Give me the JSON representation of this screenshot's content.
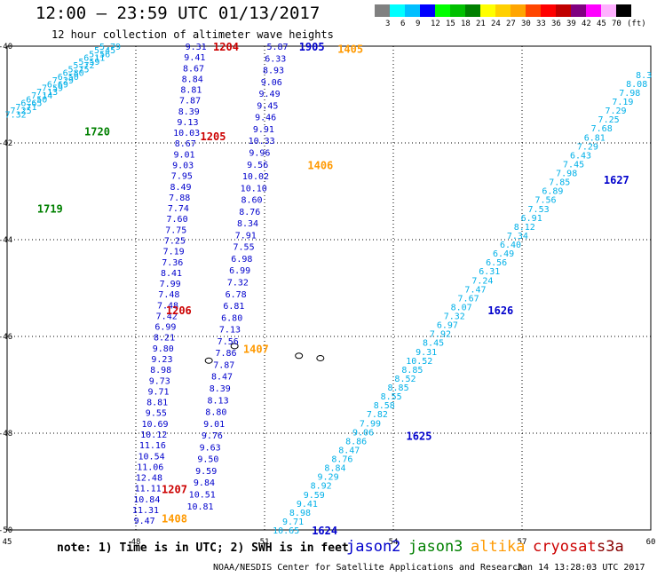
{
  "title": "12:00 – 23:59 UTC 01/13/2017",
  "subtitle": "12 hour collection of altimeter wave heights",
  "colorbar": {
    "unit": "(ft)",
    "labels": [
      "3",
      "6",
      "9",
      "12",
      "15",
      "18",
      "21",
      "24",
      "27",
      "30",
      "33",
      "36",
      "39",
      "42",
      "45",
      "70"
    ],
    "colors": [
      "#808080",
      "#00ffff",
      "#00bfff",
      "#0000ff",
      "#00ff00",
      "#00c000",
      "#008000",
      "#ffff00",
      "#ffd000",
      "#ffa500",
      "#ff4500",
      "#ff0000",
      "#c00000",
      "#800080",
      "#ff00ff",
      "#ffb0ff",
      "#000000"
    ]
  },
  "note": "note: 1) Time is in UTC; 2) SWH is in feet",
  "legend": [
    {
      "name": "jason2",
      "color": "#0000cc"
    },
    {
      "name": "jason3",
      "color": "#008000"
    },
    {
      "name": "altika",
      "color": "#ff9900"
    },
    {
      "name": "cryosat",
      "color": "#cc0000"
    },
    {
      "name": "s3a",
      "color": "#880000"
    }
  ],
  "footer_left": "NOAA/NESDIS Center for Satellite Applications and Research",
  "footer_right": "Jan 14 13:28:03 UTC 2017",
  "chart_data": {
    "type": "scatter",
    "xlim": [
      45,
      60
    ],
    "ylim": [
      -50,
      -40
    ],
    "x_ticks": [
      "45",
      "48",
      "51",
      "54",
      "57",
      "60"
    ],
    "y_ticks": [
      "-40",
      "-42",
      "-44",
      "-46",
      "-48",
      "-50"
    ],
    "grid": true,
    "colors": {
      "cyan": "#00b0e8",
      "blue": "#0000cc",
      "green": "#008000",
      "red": "#cc0000",
      "orange": "#ff9900"
    },
    "tracks": [
      {
        "lon0": 45.2,
        "lat0": -41.4,
        "lon1": 47.4,
        "lat1": -40.0,
        "color": "cyan",
        "values": [
          "7.32",
          "7.25",
          "7.71",
          "6.65",
          "6.50",
          "7.14",
          "7.13",
          "7.59",
          "6.69",
          "7.29",
          "6.50",
          "6.80",
          "5.75",
          "5.72",
          "5.59",
          "6.11",
          "5.56",
          "5.45",
          "5.79"
        ]
      },
      {
        "lon0": 48.2,
        "lat0": -49.8,
        "lon1": 49.4,
        "lat1": -40.0,
        "color": "blue",
        "values": [
          "9.47",
          "11.31",
          "10.84",
          "11.11",
          "12.48",
          "11.06",
          "10.54",
          "11.16",
          "10.12",
          "10.69",
          "9.55",
          "8.81",
          "9.71",
          "9.73",
          "8.98",
          "9.23",
          "9.80",
          "8.21",
          "6.99",
          "7.42",
          "7.48",
          "7.48",
          "7.99",
          "8.41",
          "7.36",
          "7.19",
          "7.25",
          "7.75",
          "7.60",
          "7.74",
          "7.88",
          "8.49",
          "7.95",
          "9.03",
          "9.01",
          "8.67",
          "10.03",
          "9.13",
          "8.39",
          "7.87",
          "8.81",
          "8.84",
          "8.67",
          "9.41",
          "9.31"
        ]
      },
      {
        "lon0": 49.5,
        "lat0": -49.5,
        "lon1": 51.3,
        "lat1": -40.0,
        "color": "blue",
        "values": [
          "10.81",
          "10.51",
          "9.84",
          "9.59",
          "9.50",
          "9.63",
          "9.76",
          "9.01",
          "8.80",
          "8.13",
          "8.39",
          "8.47",
          "7.87",
          "7.86",
          "7.56",
          "7.13",
          "6.80",
          "6.81",
          "6.78",
          "7.32",
          "6.99",
          "6.98",
          "7.55",
          "7.91",
          "8.34",
          "8.76",
          "8.60",
          "10.10",
          "10.02",
          "9.56",
          "9.96",
          "10.33",
          "9.91",
          "9.46",
          "9.45",
          "9.49",
          "9.06",
          "8.93",
          "6.33",
          "5.87"
        ]
      },
      {
        "lon0": 51.5,
        "lat0": -50.0,
        "lon1": 60.0,
        "lat1": -40.4,
        "color": "cyan",
        "values": [
          "10.65",
          "9.71",
          "8.98",
          "9.41",
          "9.59",
          "8.92",
          "9.29",
          "8.84",
          "8.76",
          "8.47",
          "8.86",
          "9.06",
          "7.99",
          "7.82",
          "8.58",
          "8.55",
          "8.85",
          "8.52",
          "8.85",
          "10.52",
          "9.31",
          "8.45",
          "7.92",
          "6.97",
          "7.32",
          "8.07",
          "7.67",
          "7.47",
          "7.24",
          "6.31",
          "6.56",
          "6.49",
          "6.40",
          "7.34",
          "8.12",
          "6.91",
          "7.53",
          "7.56",
          "6.89",
          "7.85",
          "7.98",
          "7.45",
          "6.43",
          "7.29",
          "6.81",
          "7.68",
          "7.25",
          "7.29",
          "7.19",
          "7.98",
          "8.08",
          "8.3",
          "8.5"
        ]
      }
    ],
    "labels": [
      {
        "text": "1720",
        "lon": 47.1,
        "lat": -41.75,
        "color": "green"
      },
      {
        "text": "1719",
        "lon": 46.0,
        "lat": -43.35,
        "color": "green"
      },
      {
        "text": "1204",
        "lon": 50.1,
        "lat": -40.0,
        "color": "red"
      },
      {
        "text": "1205",
        "lon": 49.8,
        "lat": -41.85,
        "color": "red"
      },
      {
        "text": "1206",
        "lon": 49.0,
        "lat": -45.45,
        "color": "red"
      },
      {
        "text": "1207",
        "lon": 48.9,
        "lat": -49.15,
        "color": "red"
      },
      {
        "text": "1905",
        "lon": 52.1,
        "lat": -40.0,
        "color": "blue"
      },
      {
        "text": "1405",
        "lon": 53.0,
        "lat": -40.05,
        "color": "orange"
      },
      {
        "text": "1406",
        "lon": 52.3,
        "lat": -42.45,
        "color": "orange"
      },
      {
        "text": "1407",
        "lon": 50.8,
        "lat": -46.25,
        "color": "orange"
      },
      {
        "text": "1408",
        "lon": 48.9,
        "lat": -49.75,
        "color": "orange"
      },
      {
        "text": "1627",
        "lon": 59.2,
        "lat": -42.75,
        "color": "blue"
      },
      {
        "text": "1626",
        "lon": 56.5,
        "lat": -45.45,
        "color": "blue"
      },
      {
        "text": "1625",
        "lon": 54.6,
        "lat": -48.05,
        "color": "blue"
      },
      {
        "text": "1624",
        "lon": 52.4,
        "lat": -50.0,
        "color": "blue"
      }
    ],
    "islands": [
      {
        "lon": 50.3,
        "lat": -46.2
      },
      {
        "lon": 51.8,
        "lat": -46.4
      },
      {
        "lon": 52.3,
        "lat": -46.45
      },
      {
        "lon": 49.7,
        "lat": -46.5
      }
    ]
  }
}
